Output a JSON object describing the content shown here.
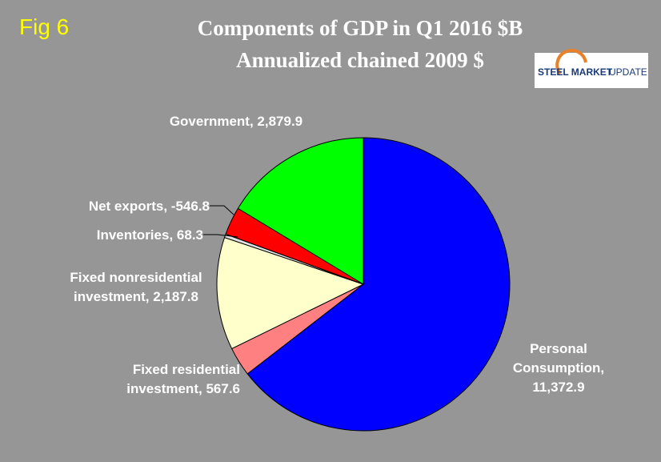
{
  "chart_data": {
    "type": "pie",
    "fig_label": "Fig 6",
    "title": "Components of GDP in Q1  2016 $B",
    "subtitle": "Annualized chained 2009 $",
    "logo": {
      "brand": "STEEL MARKET",
      "suffix": "UPDATE"
    },
    "categories": [
      "Personal Consumption,",
      "Fixed residential investment,",
      "Fixed nonresidential investment,",
      "Inventories,",
      "Net exports,",
      "Government,"
    ],
    "values": [
      11372.9,
      567.6,
      2187.8,
      68.3,
      -546.8,
      2879.9
    ],
    "value_labels": [
      "11,372.9",
      "567.6",
      "2,187.8",
      "68.3",
      "-546.8",
      "2,879.9"
    ],
    "colors": [
      "#0000ff",
      "#ff8080",
      "#ffffcc",
      "#e0e0e0",
      "#ff0000",
      "#00ff00"
    ]
  }
}
